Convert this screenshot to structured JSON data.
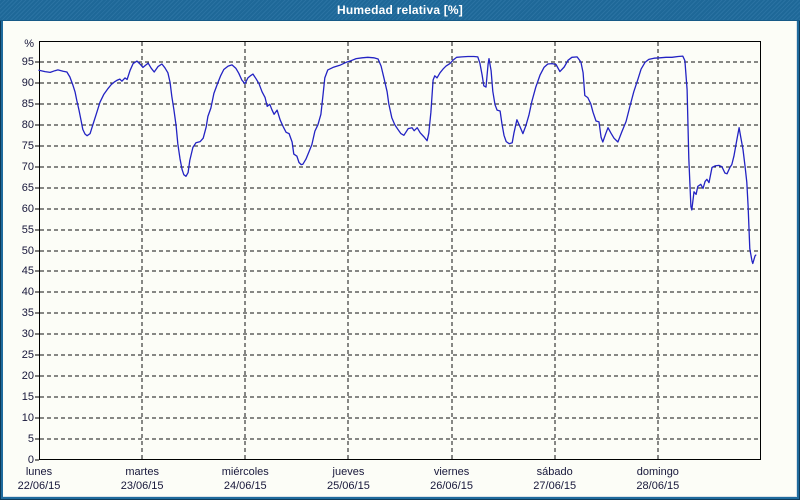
{
  "window": {
    "title": "Humedad relativa [%]"
  },
  "colors": {
    "titlebar_bg": "#1f6b9d",
    "titlebar_text": "#ffffff",
    "window_border": "#1f6b9d",
    "plot_bg": "#fcfdf7",
    "grid_color": "#111111",
    "axis_text": "#17173a",
    "line_color": "#2323c3"
  },
  "chart_data": {
    "type": "line",
    "title": "Humedad relativa [%]",
    "ylabel": "%",
    "xlabel": "",
    "ylim": [
      0,
      100
    ],
    "grid": "dashed",
    "legend_position": "none",
    "y_ticks": [
      0,
      5,
      10,
      15,
      20,
      25,
      30,
      35,
      40,
      45,
      50,
      55,
      60,
      65,
      70,
      75,
      80,
      85,
      90,
      95
    ],
    "x_axis": {
      "range_hours": [
        0,
        168
      ],
      "gridline_hours": [
        24,
        48,
        72,
        96,
        120,
        144
      ],
      "days": [
        {
          "name": "lunes",
          "date": "22/06/15"
        },
        {
          "name": "martes",
          "date": "23/06/15"
        },
        {
          "name": "miércoles",
          "date": "24/06/15"
        },
        {
          "name": "jueves",
          "date": "25/06/15"
        },
        {
          "name": "viernes",
          "date": "26/06/15"
        },
        {
          "name": "sábado",
          "date": "27/06/15"
        },
        {
          "name": "domingo",
          "date": "28/06/15"
        }
      ]
    },
    "series": [
      {
        "name": "Humedad relativa",
        "unit": "%",
        "color": "#2323c3",
        "points_hours_value": [
          [
            0,
            93
          ],
          [
            1.4,
            92.7
          ],
          [
            2.6,
            92.5
          ],
          [
            3.7,
            92.9
          ],
          [
            4.4,
            93.1
          ],
          [
            5.6,
            92.8
          ],
          [
            6.5,
            92.6
          ],
          [
            7.2,
            91.4
          ],
          [
            7.9,
            89.4
          ],
          [
            8.4,
            87.8
          ],
          [
            8.8,
            85.8
          ],
          [
            9.3,
            83.5
          ],
          [
            9.8,
            81
          ],
          [
            10.2,
            78.9
          ],
          [
            10.7,
            77.8
          ],
          [
            11.2,
            77.4
          ],
          [
            11.9,
            77.9
          ],
          [
            12.6,
            80.2
          ],
          [
            13.3,
            82.5
          ],
          [
            14.2,
            85.4
          ],
          [
            15.1,
            87.3
          ],
          [
            16.1,
            88.7
          ],
          [
            16.8,
            89.6
          ],
          [
            17.5,
            90.2
          ],
          [
            18.1,
            90.6
          ],
          [
            18.8,
            90.9
          ],
          [
            19.3,
            90.4
          ],
          [
            20,
            91.2
          ],
          [
            20.5,
            90.8
          ],
          [
            21.2,
            93
          ],
          [
            21.9,
            94.6
          ],
          [
            22.8,
            95.2
          ],
          [
            23.5,
            94.5
          ],
          [
            24.2,
            93.7
          ],
          [
            24.9,
            94.3
          ],
          [
            25.4,
            94.7
          ],
          [
            26.1,
            93.5
          ],
          [
            26.8,
            92.6
          ],
          [
            27.7,
            93.9
          ],
          [
            28.6,
            94.5
          ],
          [
            29.3,
            93.6
          ],
          [
            30,
            92.4
          ],
          [
            30.5,
            90.1
          ],
          [
            30.9,
            86.8
          ],
          [
            31.4,
            83.6
          ],
          [
            31.9,
            79.8
          ],
          [
            32.3,
            75.5
          ],
          [
            32.8,
            71.9
          ],
          [
            33.3,
            69.3
          ],
          [
            33.7,
            68.1
          ],
          [
            34.2,
            67.7
          ],
          [
            34.7,
            68.6
          ],
          [
            35.1,
            71.5
          ],
          [
            35.8,
            74.6
          ],
          [
            36.5,
            75.7
          ],
          [
            37.5,
            76
          ],
          [
            38.2,
            76.8
          ],
          [
            38.9,
            79.5
          ],
          [
            39.3,
            82
          ],
          [
            40,
            84
          ],
          [
            40.7,
            87.5
          ],
          [
            41.6,
            90
          ],
          [
            42.3,
            91.8
          ],
          [
            43,
            93.2
          ],
          [
            44,
            94
          ],
          [
            44.9,
            94.3
          ],
          [
            45.8,
            93.5
          ],
          [
            46.5,
            92.3
          ],
          [
            47.2,
            90.7
          ],
          [
            47.9,
            89.8
          ],
          [
            48.6,
            91.2
          ],
          [
            49.3,
            91.8
          ],
          [
            49.8,
            92.1
          ],
          [
            50.5,
            91
          ],
          [
            51.2,
            89.8
          ],
          [
            51.9,
            87.9
          ],
          [
            52.6,
            86.5
          ],
          [
            53.1,
            84.4
          ],
          [
            53.7,
            84.9
          ],
          [
            54.2,
            83.6
          ],
          [
            54.7,
            82.5
          ],
          [
            55.4,
            83.5
          ],
          [
            56.1,
            81.2
          ],
          [
            56.8,
            79.6
          ],
          [
            57.5,
            78.2
          ],
          [
            58.2,
            77.9
          ],
          [
            58.9,
            75.9
          ],
          [
            59.3,
            73
          ],
          [
            60,
            72.5
          ],
          [
            60.5,
            71
          ],
          [
            61,
            70.5
          ],
          [
            61.4,
            70.6
          ],
          [
            62.1,
            71.8
          ],
          [
            62.8,
            73.5
          ],
          [
            63.5,
            75.3
          ],
          [
            64.2,
            78.5
          ],
          [
            64.9,
            80
          ],
          [
            65.6,
            82.5
          ],
          [
            66.1,
            87.3
          ],
          [
            66.5,
            91.2
          ],
          [
            67.2,
            93.1
          ],
          [
            68.4,
            93.7
          ],
          [
            70,
            94.2
          ],
          [
            71.4,
            94.9
          ],
          [
            72.6,
            95.3
          ],
          [
            73.8,
            95.8
          ],
          [
            75.2,
            96
          ],
          [
            76.5,
            96.1
          ],
          [
            77.9,
            96
          ],
          [
            78.9,
            95.7
          ],
          [
            79.6,
            94
          ],
          [
            80.3,
            91
          ],
          [
            81,
            87.9
          ],
          [
            81.4,
            85
          ],
          [
            82.1,
            81.7
          ],
          [
            82.8,
            80
          ],
          [
            83.5,
            78.9
          ],
          [
            84.2,
            77.9
          ],
          [
            84.9,
            77.5
          ],
          [
            85.9,
            79.1
          ],
          [
            86.8,
            79.3
          ],
          [
            87.3,
            78.6
          ],
          [
            88,
            79.3
          ],
          [
            88.7,
            78.1
          ],
          [
            89.6,
            77.1
          ],
          [
            90.3,
            76.2
          ],
          [
            90.7,
            78
          ],
          [
            91.2,
            83
          ],
          [
            91.7,
            90.7
          ],
          [
            92.1,
            91.7
          ],
          [
            92.6,
            91.2
          ],
          [
            93.3,
            92.4
          ],
          [
            94,
            93.3
          ],
          [
            94.7,
            94
          ],
          [
            95.6,
            94.6
          ],
          [
            96.3,
            95.4
          ],
          [
            97.2,
            96.1
          ],
          [
            98.4,
            96.2
          ],
          [
            99.8,
            96.3
          ],
          [
            101.2,
            96.3
          ],
          [
            102.1,
            96.2
          ],
          [
            102.6,
            94.7
          ],
          [
            103.1,
            91.9
          ],
          [
            103.5,
            89.3
          ],
          [
            104,
            89
          ],
          [
            104.5,
            94.5
          ],
          [
            104.7,
            95.8
          ],
          [
            105.2,
            92.9
          ],
          [
            105.6,
            88
          ],
          [
            106.1,
            84.8
          ],
          [
            106.6,
            83.5
          ],
          [
            107.3,
            83.3
          ],
          [
            107.7,
            80.3
          ],
          [
            108.2,
            77.5
          ],
          [
            108.7,
            76
          ],
          [
            109.4,
            75.5
          ],
          [
            110.1,
            75.7
          ],
          [
            110.5,
            78
          ],
          [
            111.2,
            81.2
          ],
          [
            111.9,
            79.6
          ],
          [
            112.6,
            77.9
          ],
          [
            113.3,
            79.8
          ],
          [
            114,
            82.3
          ],
          [
            114.7,
            85.6
          ],
          [
            115.6,
            89
          ],
          [
            116.6,
            91.9
          ],
          [
            117.5,
            93.7
          ],
          [
            118.4,
            94.5
          ],
          [
            119.4,
            94.6
          ],
          [
            120.3,
            94.4
          ],
          [
            121.2,
            92.7
          ],
          [
            122.2,
            93.8
          ],
          [
            123.1,
            95.4
          ],
          [
            124,
            96.1
          ],
          [
            125.2,
            96.2
          ],
          [
            126.1,
            95
          ],
          [
            126.6,
            92.4
          ],
          [
            127,
            87
          ],
          [
            127.7,
            86.5
          ],
          [
            128.4,
            85
          ],
          [
            128.9,
            83
          ],
          [
            129.6,
            80.9
          ],
          [
            130.3,
            80.7
          ],
          [
            130.8,
            77
          ],
          [
            131.2,
            75.9
          ],
          [
            131.9,
            78
          ],
          [
            132.4,
            79.3
          ],
          [
            133.1,
            78
          ],
          [
            133.8,
            76.8
          ],
          [
            134.7,
            75.9
          ],
          [
            135.6,
            78.3
          ],
          [
            136.6,
            80.8
          ],
          [
            137.5,
            84.4
          ],
          [
            138.4,
            87.9
          ],
          [
            139.4,
            91
          ],
          [
            140.1,
            93.3
          ],
          [
            141,
            94.9
          ],
          [
            141.9,
            95.6
          ],
          [
            143.1,
            95.9
          ],
          [
            144.5,
            96
          ],
          [
            145.9,
            96.1
          ],
          [
            147.3,
            96.1
          ],
          [
            148.7,
            96.3
          ],
          [
            149.8,
            96.4
          ],
          [
            150.3,
            95.3
          ],
          [
            150.8,
            88.4
          ],
          [
            151.2,
            72
          ],
          [
            151.7,
            60.5
          ],
          [
            151.9,
            59.7
          ],
          [
            152.4,
            64
          ],
          [
            152.9,
            63.4
          ],
          [
            153.3,
            65.3
          ],
          [
            154,
            65.8
          ],
          [
            154.5,
            64.8
          ],
          [
            155,
            66.5
          ],
          [
            155.4,
            67
          ],
          [
            155.9,
            66.2
          ],
          [
            156.6,
            69.8
          ],
          [
            157.3,
            70.2
          ],
          [
            158.2,
            70.3
          ],
          [
            158.9,
            70
          ],
          [
            159.6,
            68.5
          ],
          [
            160.1,
            68.3
          ],
          [
            160.8,
            69.9
          ],
          [
            161.2,
            70.5
          ],
          [
            161.7,
            72.5
          ],
          [
            162.4,
            76.5
          ],
          [
            162.9,
            79.3
          ],
          [
            163.3,
            77
          ],
          [
            163.8,
            74.1
          ],
          [
            164.3,
            70
          ],
          [
            164.7,
            66.3
          ],
          [
            165,
            60.6
          ],
          [
            165.4,
            50.4
          ],
          [
            165.9,
            47.5
          ],
          [
            166.1,
            46.9
          ],
          [
            166.6,
            48.7
          ],
          [
            166.8,
            48.9
          ]
        ]
      }
    ]
  }
}
